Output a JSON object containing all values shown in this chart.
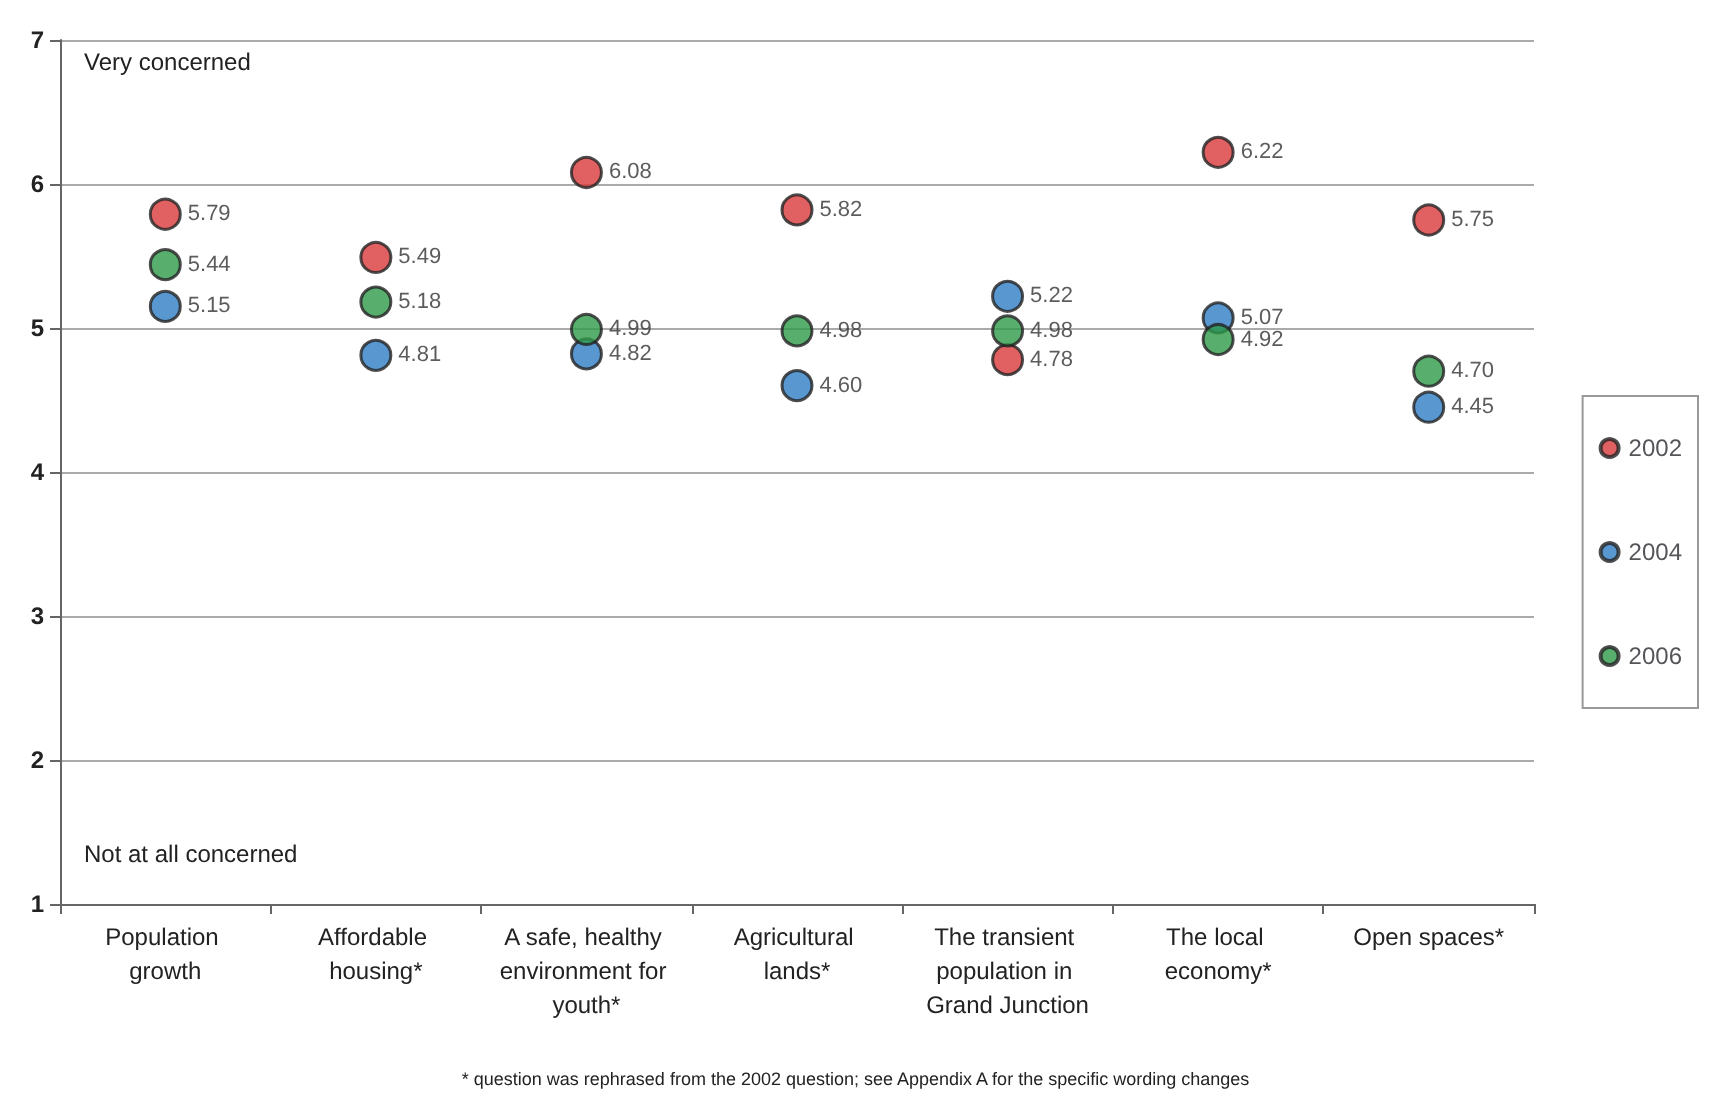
{
  "chart_data": {
    "type": "scatter",
    "categories": [
      "Population growth",
      "Affordable housing*",
      "A safe, healthy environment for youth*",
      "Agricultural lands*",
      "The transient population in Grand Junction",
      "The local economy*",
      "Open spaces*"
    ],
    "series": [
      {
        "name": "2002",
        "color": "#d9383a",
        "values": [
          5.79,
          5.49,
          6.08,
          5.82,
          4.78,
          6.22,
          5.75
        ],
        "value_labels": [
          "5.79",
          "5.49",
          "6.08",
          "5.82",
          "4.78",
          "6.22",
          "5.75"
        ]
      },
      {
        "name": "2004",
        "color": "#2f7dc4",
        "values": [
          5.15,
          4.81,
          4.82,
          4.6,
          5.22,
          5.07,
          4.45
        ],
        "value_labels": [
          "5.15",
          "4.81",
          "4.82",
          "4.60",
          "5.22",
          "5.07",
          "4.45"
        ]
      },
      {
        "name": "2006",
        "color": "#2e9a48",
        "values": [
          5.44,
          5.18,
          4.99,
          4.98,
          4.98,
          4.92,
          4.7
        ],
        "value_labels": [
          "5.44",
          "5.18",
          "4.99",
          "4.98",
          "4.98",
          "4.92",
          "4.70"
        ]
      }
    ],
    "ylim": [
      1,
      7
    ],
    "yticks": [
      1,
      2,
      3,
      4,
      5,
      6,
      7
    ],
    "grid": "y",
    "legend": "right",
    "marker": "circle",
    "annotations": [
      "Very concerned",
      "Not at all concerned",
      "* question was rephrased from the 2002 question; see Appendix A for the specific wording changes"
    ]
  }
}
